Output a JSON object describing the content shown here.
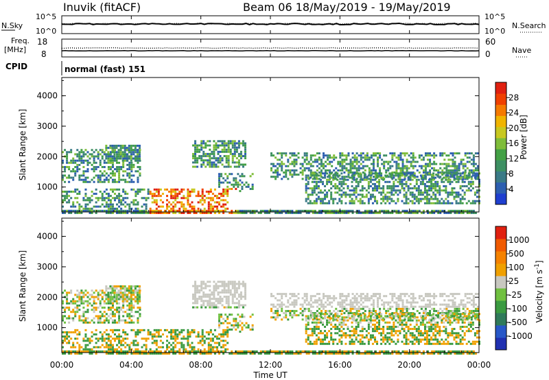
{
  "header": {
    "title": "Inuvik (fitACF)",
    "beam_date": "Beam 06  18/May/2019 - 19/May/2019"
  },
  "noise_panel": {
    "left_label": "N.Sky",
    "right_label": "N.Search",
    "left_ticks": [
      "10^5",
      "10^0"
    ],
    "right_ticks": [
      "10^5",
      "10^0"
    ]
  },
  "freq_panel": {
    "left_label_1": "Freq.",
    "left_label_2": "[MHz]",
    "right_label": "Nave",
    "left_ticks": [
      "18",
      "8"
    ],
    "right_ticks": [
      "60",
      "0"
    ]
  },
  "cpid": {
    "label": "CPID",
    "mode": "normal (fast) 151"
  },
  "colors": {
    "scale_blue": "#1f3fd0",
    "scale_green": "#2f8f3f",
    "scale_red": "#e02010",
    "ground_scatter_grey": "#c8c8c0"
  },
  "chart_data": [
    {
      "type": "heatmap",
      "name": "power",
      "ylabel": "Slant Range [km]",
      "yticks": [
        "1000",
        "2000",
        "3000",
        "4000"
      ],
      "colorbar_label": "Power [dB]",
      "colorbar_ticks": [
        "4",
        "8",
        "12",
        "16",
        "20",
        "24",
        "28"
      ],
      "colorbar_colors": [
        "#1f3fd0",
        "#2d5fb0",
        "#3a7a86",
        "#3d8f62",
        "#43a045",
        "#7fbd3a",
        "#c8c820",
        "#f0b400",
        "#f57a00",
        "#f04000",
        "#e02010"
      ]
    },
    {
      "type": "heatmap",
      "name": "velocity",
      "ylabel": "Slant Range [km]",
      "yticks": [
        "1000",
        "2000",
        "3000",
        "4000"
      ],
      "xlabel": "Time UT",
      "xticks": [
        "00:00",
        "04:00",
        "08:00",
        "12:00",
        "16:00",
        "20:00",
        "00:00"
      ],
      "colorbar_label": "Velocity [m s",
      "colorbar_unit_sup": "-1",
      "colorbar_ticks": [
        "1000",
        "500",
        "100",
        "25",
        "-25",
        "-100",
        "-500",
        "-1000"
      ],
      "colorbar_colors": [
        "#2030b0",
        "#2858c8",
        "#2f7a5a",
        "#3a9a40",
        "#70c040",
        "#c8c8c0",
        "#f0a000",
        "#f58200",
        "#f05a00",
        "#e02010"
      ]
    }
  ]
}
